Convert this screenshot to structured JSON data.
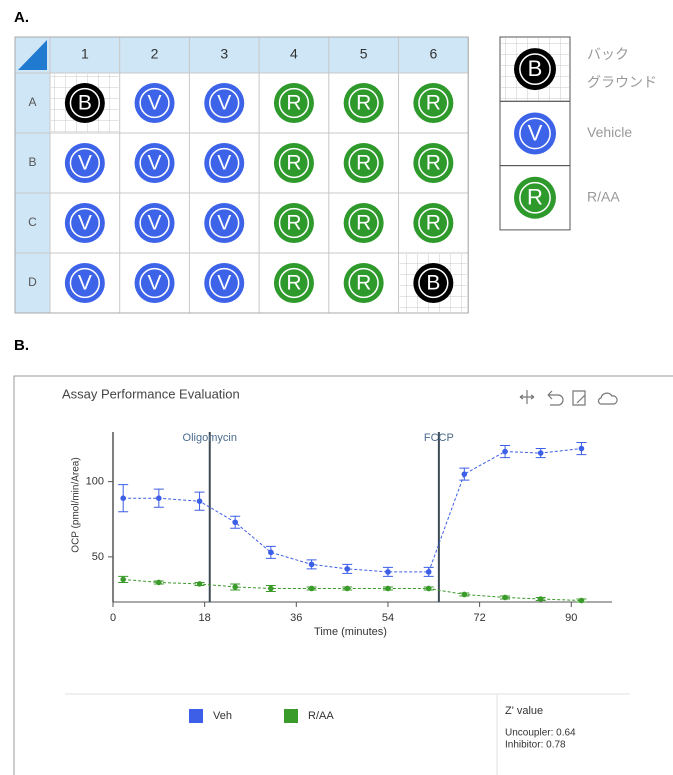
{
  "panel_a": {
    "label": "A.",
    "columns": [
      "1",
      "2",
      "3",
      "4",
      "5",
      "6"
    ],
    "rows": [
      {
        "label": "A",
        "wells": [
          "B",
          "V",
          "V",
          "R",
          "R",
          "R"
        ]
      },
      {
        "label": "B",
        "wells": [
          "V",
          "V",
          "V",
          "R",
          "R",
          "R"
        ]
      },
      {
        "label": "C",
        "wells": [
          "V",
          "V",
          "V",
          "R",
          "R",
          "R"
        ]
      },
      {
        "label": "D",
        "wells": [
          "V",
          "V",
          "V",
          "R",
          "R",
          "B"
        ]
      }
    ],
    "legend": [
      {
        "letter": "B",
        "color": "#000000",
        "label": [
          "バック",
          "グラウンド"
        ]
      },
      {
        "letter": "V",
        "color": "#3d63e8",
        "label": [
          "Vehicle"
        ]
      },
      {
        "letter": "R",
        "color": "#2f9a2c",
        "label": [
          "R/AA"
        ]
      }
    ]
  },
  "panel_b_label": "B.",
  "chart_data": {
    "type": "line",
    "title": "Assay Performance Evaluation",
    "xlabel": "Time (minutes)",
    "ylabel": "OCP (pmol/min/Area)",
    "x": [
      2,
      9,
      17,
      24,
      31,
      39,
      46,
      54,
      62,
      69,
      77,
      84,
      92
    ],
    "xlim": [
      0,
      98
    ],
    "xticks": [
      0,
      18,
      36,
      54,
      72,
      90
    ],
    "ylim": [
      20,
      133
    ],
    "yticks": [
      50,
      100
    ],
    "series": [
      {
        "name": "Veh",
        "color": "#3d5ee6",
        "values": [
          89,
          89,
          87,
          73,
          53,
          45,
          42,
          40,
          40,
          105,
          120,
          119,
          122
        ],
        "errors": [
          9,
          6,
          6,
          4,
          4,
          3,
          3,
          3,
          3,
          4,
          4,
          3,
          4
        ]
      },
      {
        "name": "R/AA",
        "color": "#3a9a2a",
        "values": [
          35,
          33,
          32,
          30,
          29,
          29,
          29,
          29,
          29,
          25,
          23,
          22,
          21
        ],
        "errors": [
          2,
          1,
          1,
          2,
          2,
          1,
          1,
          1,
          1,
          1,
          1,
          1,
          1
        ]
      }
    ],
    "annotations": [
      {
        "label": "Oligomycin",
        "x": 19
      },
      {
        "label": "FCCP",
        "x": 64
      }
    ],
    "z_panel": {
      "title": "Z' value",
      "lines": [
        "Uncoupler: 0.64",
        "Inhibitor: 0.78"
      ]
    }
  }
}
